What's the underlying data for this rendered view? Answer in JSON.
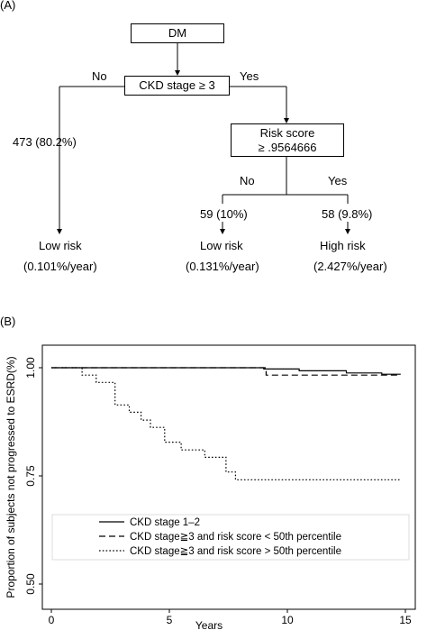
{
  "panel_a": {
    "label": "(A)",
    "root": "DM",
    "split1": "CKD stage ≥ 3",
    "split1_no": "No",
    "split1_yes": "Yes",
    "left_count": "473 (80.2%)",
    "left_risk": "Low risk",
    "left_rate": "(0.101%/year)",
    "split2_line1": "Risk score",
    "split2_line2": "≥ .9564666",
    "split2_no": "No",
    "split2_yes": "Yes",
    "mid_count": "59 (10%)",
    "mid_risk": "Low risk",
    "mid_rate": "(0.131%/year)",
    "right_count": "58 (9.8%)",
    "right_risk": "High risk",
    "right_rate": "(2.427%/year)"
  },
  "panel_b": {
    "label": "(B)",
    "chart_data": {
      "type": "line",
      "xlabel": "Years",
      "ylabel": "Proportion of subjects not progressed to ESRD(%)",
      "xlim": [
        0,
        15
      ],
      "ylim": [
        0.5,
        1.0
      ],
      "xticks": [
        "0",
        "5",
        "10",
        "15"
      ],
      "yticks": [
        "0.50",
        "0.75",
        "1.00"
      ],
      "legend_position": "bottom-inside",
      "series": [
        {
          "name": "CKD stage 1–2",
          "style": "solid",
          "x": [
            0,
            9.0,
            9.0,
            10.5,
            10.5,
            12.5,
            12.5,
            14.0,
            14.0,
            14.8
          ],
          "y": [
            1.0,
            1.0,
            0.997,
            0.997,
            0.993,
            0.993,
            0.988,
            0.988,
            0.985,
            0.985
          ]
        },
        {
          "name": "CKD stage≧3 and risk score < 50th percentile",
          "style": "dashed",
          "x": [
            0,
            9.1,
            9.1,
            14.8
          ],
          "y": [
            1.0,
            1.0,
            0.983,
            0.983
          ]
        },
        {
          "name": "CKD stage≧3 and risk score > 50th percentile",
          "style": "dotted",
          "x": [
            0,
            1.3,
            1.3,
            1.9,
            1.9,
            2.7,
            2.7,
            3.3,
            3.3,
            3.8,
            3.8,
            4.2,
            4.2,
            4.8,
            4.8,
            5.5,
            5.5,
            6.5,
            6.5,
            7.4,
            7.4,
            7.8,
            7.8,
            14.8
          ],
          "y": [
            1.0,
            1.0,
            0.983,
            0.983,
            0.966,
            0.966,
            0.914,
            0.914,
            0.897,
            0.897,
            0.879,
            0.879,
            0.862,
            0.862,
            0.828,
            0.828,
            0.81,
            0.81,
            0.793,
            0.793,
            0.759,
            0.759,
            0.741,
            0.741
          ]
        }
      ]
    }
  }
}
